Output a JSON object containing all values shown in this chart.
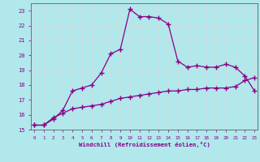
{
  "xlabel": "Windchill (Refroidissement éolien,°C)",
  "background_color": "#b0e8ec",
  "grid_color": "#c8dfe0",
  "line_color": "#880088",
  "x_hours": [
    0,
    1,
    2,
    3,
    4,
    5,
    6,
    7,
    8,
    9,
    10,
    11,
    12,
    13,
    14,
    15,
    16,
    17,
    18,
    19,
    20,
    21,
    22,
    23
  ],
  "curve1_y": [
    15.3,
    15.3,
    15.7,
    16.3,
    17.6,
    17.8,
    18.0,
    18.8,
    20.1,
    20.4,
    23.1,
    22.6,
    22.6,
    22.5,
    22.1,
    19.6,
    19.2,
    19.3,
    19.2,
    19.2,
    19.4,
    19.2,
    18.6,
    17.6
  ],
  "curve2_y": [
    15.3,
    15.3,
    15.8,
    16.1,
    16.4,
    16.5,
    16.6,
    16.7,
    16.9,
    17.1,
    17.2,
    17.3,
    17.4,
    17.5,
    17.6,
    17.6,
    17.7,
    17.7,
    17.8,
    17.8,
    17.8,
    17.9,
    18.3,
    18.5
  ],
  "ylim": [
    15,
    23.5
  ],
  "xlim": [
    -0.3,
    23.3
  ],
  "yticks": [
    15,
    16,
    17,
    18,
    19,
    20,
    21,
    22,
    23
  ],
  "xticks": [
    0,
    1,
    2,
    3,
    4,
    5,
    6,
    7,
    8,
    9,
    10,
    11,
    12,
    13,
    14,
    15,
    16,
    17,
    18,
    19,
    20,
    21,
    22,
    23
  ]
}
